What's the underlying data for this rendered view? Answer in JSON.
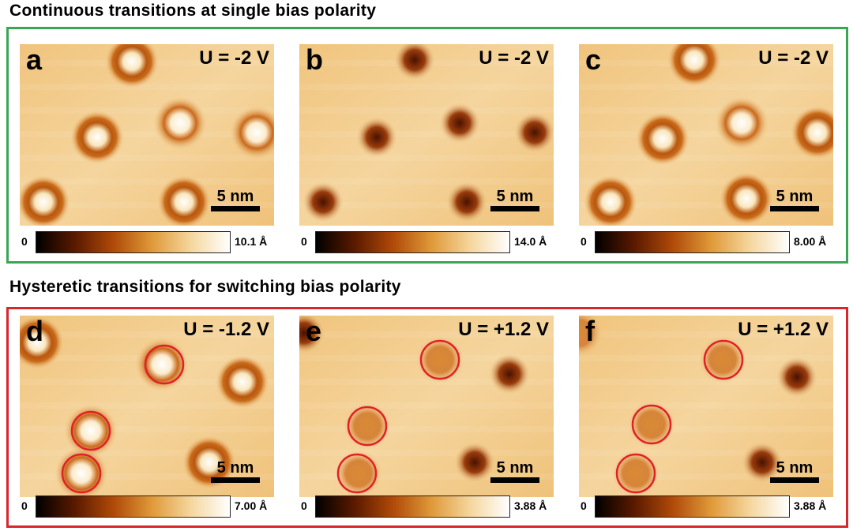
{
  "sections": [
    {
      "title": "Continuous transitions at single bias polarity",
      "frame_color": "#3aa655"
    },
    {
      "title": "Hysteretic transitions for switching bias polarity",
      "frame_color": "#d9262b"
    }
  ],
  "panels": [
    {
      "label": "a",
      "bias": "U = -2 V",
      "scale": "5 nm",
      "cmin": "0",
      "cmax": "10.1 Å"
    },
    {
      "label": "b",
      "bias": "U = -2 V",
      "scale": "5 nm",
      "cmin": "0",
      "cmax": "14.0 Å"
    },
    {
      "label": "c",
      "bias": "U = -2 V",
      "scale": "5 nm",
      "cmin": "0",
      "cmax": "8.00 Å"
    },
    {
      "label": "d",
      "bias": "U = -1.2 V",
      "scale": "5 nm",
      "cmin": "0",
      "cmax": "7.00 Å"
    },
    {
      "label": "e",
      "bias": "U = +1.2 V",
      "scale": "5 nm",
      "cmin": "0",
      "cmax": "3.88 Å"
    },
    {
      "label": "f",
      "bias": "U = +1.2 V",
      "scale": "5 nm",
      "cmin": "0",
      "cmax": "3.88 Å"
    }
  ],
  "colors": {
    "colormap": [
      "#000000",
      "#5a1a00",
      "#b04a08",
      "#e09a3a",
      "#f5d79e",
      "#ffffff"
    ],
    "background": "#f2c986",
    "highlight_circle": "#e0202a"
  }
}
